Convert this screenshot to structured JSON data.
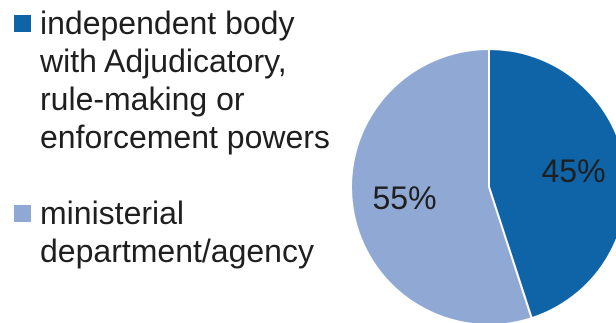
{
  "chart_data": {
    "type": "pie",
    "legend_position": "left",
    "slices": [
      {
        "name": "independent body with Adjudicatory, rule-making or enforcement powers",
        "value": 45,
        "label": "45%",
        "color": "#0e64a6"
      },
      {
        "name": "ministerial department/agency",
        "value": 55,
        "label": "55%",
        "color": "#8fa9d4"
      }
    ]
  }
}
